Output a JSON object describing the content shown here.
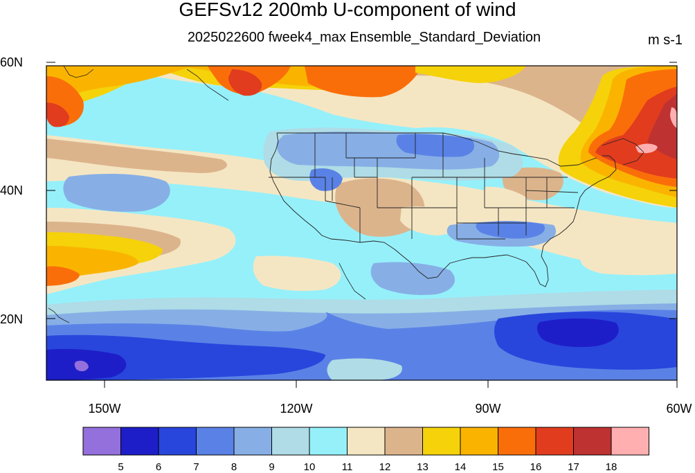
{
  "title": "GEFSv12 200mb U-component of wind",
  "subtitle": "2025022600 fweek4_max Ensemble_Standard_Deviation",
  "units": "m s-1",
  "lat_labels": [
    "60N",
    "40N",
    "20N"
  ],
  "lon_labels": [
    "150W",
    "120W",
    "90W",
    "60W"
  ],
  "colorbar": {
    "labels": [
      "5",
      "6",
      "7",
      "8",
      "9",
      "10",
      "11",
      "12",
      "13",
      "14",
      "15",
      "16",
      "17",
      "18"
    ],
    "colors": [
      "#9370db",
      "#1e1ec8",
      "#2846dc",
      "#5a82e6",
      "#87afe6",
      "#afdce6",
      "#96f0fa",
      "#f5e6c3",
      "#dcb48c",
      "#f5d20a",
      "#fab400",
      "#fa6e0a",
      "#e13c1e",
      "#be3232",
      "#ffafaf"
    ]
  },
  "map": {
    "colors": {
      "lav": "#9370db",
      "db": "#1e1ec8",
      "b": "#2846dc",
      "mb": "#5a82e6",
      "lb": "#87afe6",
      "vl": "#afdce6",
      "cy": "#96f0fa",
      "cr": "#f5e6c3",
      "tn": "#dcb48c",
      "ye": "#f5d20a",
      "or": "#fab400",
      "do": "#fa6e0a",
      "rd": "#e13c1e",
      "dr": "#be3232",
      "pk": "#ffafaf"
    }
  }
}
